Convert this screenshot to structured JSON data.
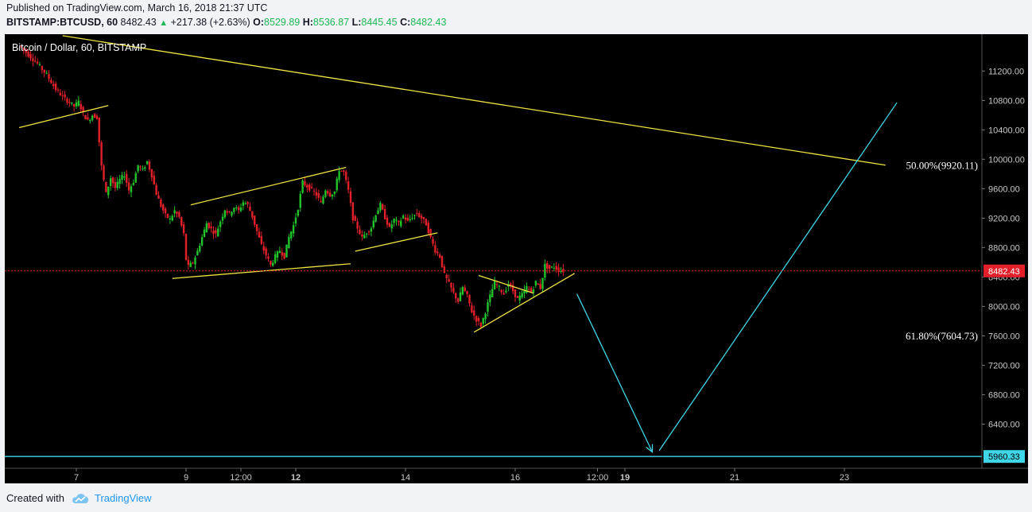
{
  "header": {
    "published": "Published on TradingView.com, March 16, 2018 21:37 UTC",
    "symbol": "BITSTAMP:BTCUSD, 60",
    "price": "8482.43",
    "change": "+217.38 (+2.63%)",
    "o_label": "O:",
    "o_value": "8529.89",
    "h_label": "H:",
    "h_value": "8536.87",
    "l_label": "L:",
    "l_value": "8445.45",
    "c_label": "C:",
    "c_value": "8482.43"
  },
  "footer": {
    "created_with": "Created with",
    "brand": "TradingView"
  },
  "colors": {
    "up": "#22c42b",
    "down": "#e3202a",
    "trend": "#f0e442",
    "projection": "#3fd6e8",
    "price_line": "#e3202a",
    "axis_text": "#c8c8c8",
    "text": "#ffffff"
  },
  "chart_data": {
    "type": "candlestick",
    "title": "Bitcoin / Dollar, 60, BITSTAMP",
    "ylim": [
      5800,
      11700
    ],
    "y_ticks": [
      6400,
      6800,
      7200,
      7600,
      8000,
      8400,
      8800,
      9200,
      9600,
      10000,
      10400,
      10800,
      11200
    ],
    "x_ticks": [
      "7",
      "9",
      "12:00",
      "12",
      "14",
      "16",
      "12:00",
      "19",
      "21",
      "23"
    ],
    "x_tick_hours": [
      24,
      72,
      96,
      120,
      168,
      216,
      252,
      264,
      312,
      360
    ],
    "current_price": 8482.43,
    "current_price_label": "8482.43",
    "target_price": 5960.33,
    "target_price_label": "5960.33",
    "fib_levels": [
      {
        "label": "50.00%(9920.11)",
        "value": 9920.11
      },
      {
        "label": "61.80%(7604.73)",
        "value": 7604.73
      }
    ],
    "price_path": [
      [
        0,
        11550
      ],
      [
        4,
        11420
      ],
      [
        8,
        11300
      ],
      [
        12,
        11150
      ],
      [
        16,
        10950
      ],
      [
        20,
        10820
      ],
      [
        24,
        10720
      ],
      [
        26,
        10780
      ],
      [
        28,
        10620
      ],
      [
        30,
        10520
      ],
      [
        32,
        10600
      ],
      [
        34,
        10570
      ],
      [
        36,
        9900
      ],
      [
        38,
        9530
      ],
      [
        40,
        9750
      ],
      [
        42,
        9610
      ],
      [
        44,
        9720
      ],
      [
        46,
        9790
      ],
      [
        48,
        9580
      ],
      [
        50,
        9700
      ],
      [
        52,
        9920
      ],
      [
        54,
        9850
      ],
      [
        56,
        9970
      ],
      [
        58,
        9780
      ],
      [
        60,
        9530
      ],
      [
        62,
        9370
      ],
      [
        64,
        9240
      ],
      [
        66,
        9180
      ],
      [
        68,
        9300
      ],
      [
        70,
        9210
      ],
      [
        72,
        8980
      ],
      [
        73,
        8640
      ],
      [
        74,
        8540
      ],
      [
        76,
        8600
      ],
      [
        78,
        8750
      ],
      [
        80,
        8940
      ],
      [
        82,
        9130
      ],
      [
        84,
        9050
      ],
      [
        86,
        8980
      ],
      [
        88,
        9160
      ],
      [
        90,
        9320
      ],
      [
        92,
        9260
      ],
      [
        94,
        9350
      ],
      [
        96,
        9300
      ],
      [
        98,
        9420
      ],
      [
        100,
        9380
      ],
      [
        102,
        9220
      ],
      [
        104,
        9020
      ],
      [
        106,
        8830
      ],
      [
        108,
        8700
      ],
      [
        110,
        8560
      ],
      [
        112,
        8680
      ],
      [
        114,
        8760
      ],
      [
        116,
        8680
      ],
      [
        118,
        8940
      ],
      [
        120,
        9100
      ],
      [
        122,
        9340
      ],
      [
        124,
        9690
      ],
      [
        126,
        9630
      ],
      [
        128,
        9580
      ],
      [
        130,
        9520
      ],
      [
        132,
        9400
      ],
      [
        134,
        9590
      ],
      [
        136,
        9520
      ],
      [
        138,
        9560
      ],
      [
        140,
        9860
      ],
      [
        142,
        9820
      ],
      [
        144,
        9570
      ],
      [
        146,
        9200
      ],
      [
        148,
        9070
      ],
      [
        150,
        8930
      ],
      [
        152,
        9010
      ],
      [
        154,
        9070
      ],
      [
        156,
        9260
      ],
      [
        158,
        9380
      ],
      [
        160,
        9210
      ],
      [
        162,
        9060
      ],
      [
        164,
        9180
      ],
      [
        166,
        9120
      ],
      [
        168,
        9230
      ],
      [
        170,
        9150
      ],
      [
        172,
        9220
      ],
      [
        174,
        9260
      ],
      [
        176,
        9200
      ],
      [
        178,
        9120
      ],
      [
        180,
        8930
      ],
      [
        182,
        8760
      ],
      [
        184,
        8680
      ],
      [
        186,
        8430
      ],
      [
        188,
        8310
      ],
      [
        190,
        8180
      ],
      [
        192,
        8070
      ],
      [
        194,
        8260
      ],
      [
        196,
        8140
      ],
      [
        198,
        7930
      ],
      [
        200,
        7820
      ],
      [
        202,
        7740
      ],
      [
        204,
        7930
      ],
      [
        206,
        8140
      ],
      [
        208,
        8330
      ],
      [
        210,
        8250
      ],
      [
        212,
        8170
      ],
      [
        214,
        8310
      ],
      [
        216,
        8210
      ],
      [
        218,
        8100
      ],
      [
        220,
        8160
      ],
      [
        222,
        8260
      ],
      [
        224,
        8190
      ],
      [
        226,
        8330
      ],
      [
        228,
        8250
      ],
      [
        230,
        8560
      ],
      [
        232,
        8510
      ],
      [
        234,
        8540
      ],
      [
        236,
        8490
      ],
      [
        238,
        8482.43
      ]
    ],
    "trendlines": [
      {
        "name": "long-resistance",
        "kind": "trend",
        "x1": 18,
        "y1": 11680,
        "x2": 378,
        "y2": 9920
      },
      {
        "name": "early-support",
        "kind": "trend",
        "x1": -1,
        "y1": 10430,
        "x2": 38,
        "y2": 10730
      },
      {
        "name": "channel-top",
        "kind": "trend",
        "x1": 74,
        "y1": 9380,
        "x2": 142,
        "y2": 9890
      },
      {
        "name": "channel-bottom",
        "kind": "trend",
        "x1": 66,
        "y1": 8380,
        "x2": 144,
        "y2": 8580
      },
      {
        "name": "flag-bottom",
        "kind": "trend",
        "x1": 146,
        "y1": 8750,
        "x2": 182,
        "y2": 9000
      },
      {
        "name": "wedge-top",
        "kind": "trend",
        "x1": 200,
        "y1": 8420,
        "x2": 224,
        "y2": 8180
      },
      {
        "name": "wedge-bottom",
        "kind": "trend",
        "x1": 198,
        "y1": 7650,
        "x2": 242,
        "y2": 8450
      },
      {
        "name": "projection-down",
        "kind": "projection",
        "x1": 243,
        "y1": 8170,
        "x2": 276,
        "y2": 6020
      },
      {
        "name": "projection-up",
        "kind": "projection",
        "x1": 279,
        "y1": 6040,
        "x2": 383,
        "y2": 10770
      }
    ]
  }
}
